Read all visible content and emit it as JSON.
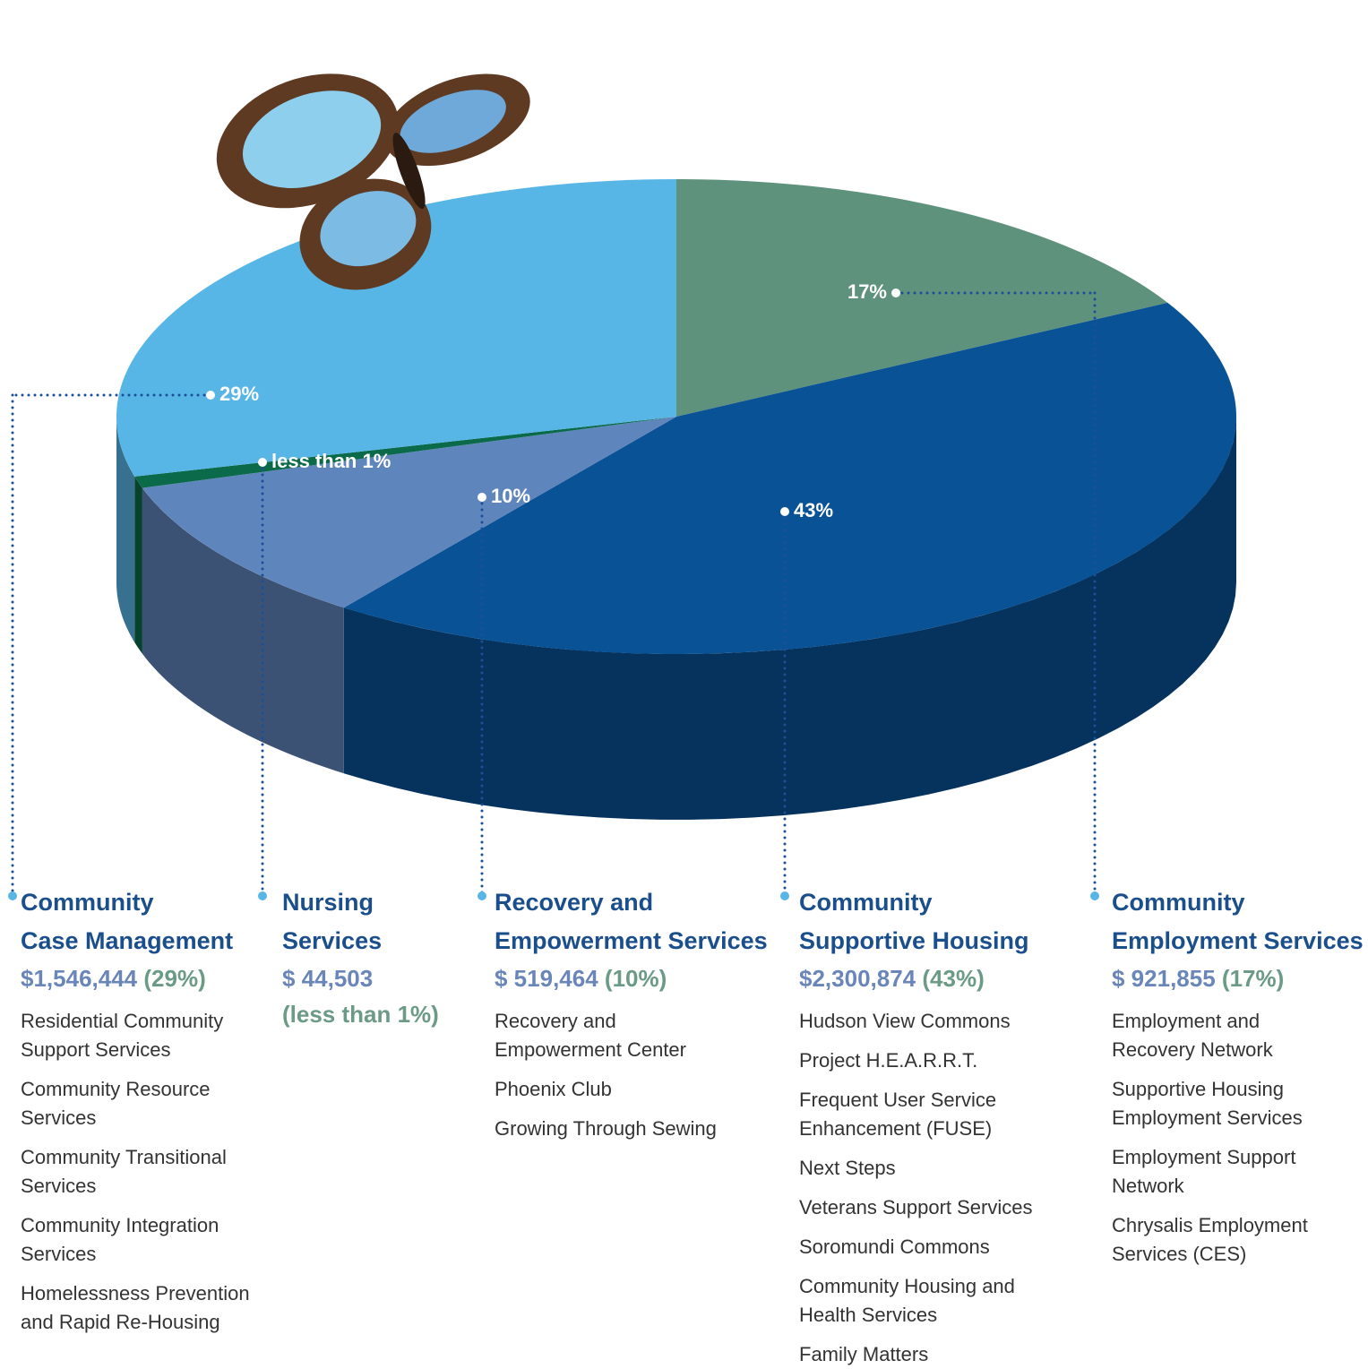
{
  "chart_data": {
    "type": "pie",
    "categories": [
      "Community\nCase Management",
      "Nursing\nServices",
      "Recovery and\nEmpowerment Services",
      "Community\nSupportive Housing",
      "Community\nEmployment Services"
    ],
    "values": [
      29,
      0.8,
      10,
      43,
      17
    ],
    "value_labels": [
      "29%",
      "less than 1%",
      "10%",
      "43%",
      "17%"
    ],
    "colors": [
      "#58b6e6",
      "#0b6a4a",
      "#5f85bd",
      "#0a5296",
      "#5f927c"
    ],
    "amounts": [
      1546444,
      44503,
      519464,
      2300874,
      921855
    ],
    "amount_labels": [
      "$1,546,444",
      "$  44,503",
      "$ 519,464",
      "$2,300,874",
      "$ 921,855"
    ],
    "amount_percent_labels": [
      "(29%)",
      "(less than 1%)",
      "(10%)",
      "(43%)",
      "(17%)"
    ],
    "programs": [
      [
        "Residential Community\nSupport Services",
        "Community Resource\nServices",
        "Community Transitional\nServices",
        "Community Integration\nServices",
        "Homelessness Prevention\nand Rapid Re-Housing"
      ],
      [],
      [
        "Recovery and\nEmpowerment Center",
        "Phoenix Club",
        "Growing Through Sewing"
      ],
      [
        "Hudson View Commons",
        "Project H.E.A.R.R.T.",
        "Frequent User Service\nEnhancement (FUSE)",
        "Next Steps",
        "Veterans Support Services",
        "Soromundi Commons",
        "Community Housing and\nHealth Services",
        "Family Matters"
      ],
      [
        "Employment and\nRecovery Network",
        "Supportive Housing\nEmployment Services",
        "Employment Support\nNetwork",
        "Chrysalis Employment\nServices (CES)"
      ]
    ]
  }
}
